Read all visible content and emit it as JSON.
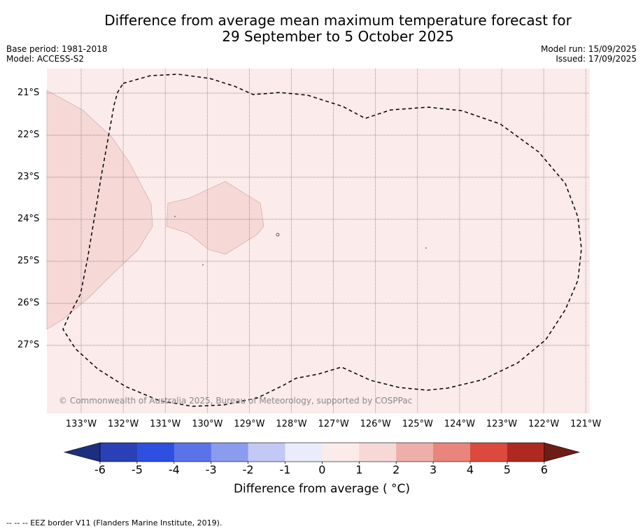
{
  "header": {
    "title_line1": "Difference from average mean maximum temperature forecast for",
    "title_line2": "29 September to 5 October 2025",
    "base_period": "Base period: 1981-2018",
    "model": "Model: ACCESS-S2",
    "model_run": "Model run: 15/09/2025",
    "issued": "Issued: 17/09/2025"
  },
  "map": {
    "lat_labels": [
      "21°S",
      "22°S",
      "23°S",
      "24°S",
      "25°S",
      "26°S",
      "27°S"
    ],
    "lon_labels": [
      "133°W",
      "132°W",
      "131°W",
      "130°W",
      "129°W",
      "128°W",
      "127°W",
      "126°W",
      "125°W",
      "124°W",
      "123°W",
      "122°W",
      "121°W"
    ],
    "copyright": "© Commonwealth of Australia 2025, Bureau of Meteorology, supported by COSPPac",
    "colors": {
      "background_anomaly": "#fbebea",
      "anomaly_1_to_2": "#f6d8d6",
      "eez_border": "#000000"
    }
  },
  "colorbar": {
    "ticks": [
      "-6",
      "-5",
      "-4",
      "-3",
      "-2",
      "-1",
      "0",
      "1",
      "2",
      "3",
      "4",
      "5",
      "6"
    ],
    "colors": [
      "#1c2e7e",
      "#2a40b6",
      "#2f4fe0",
      "#5a73e8",
      "#8b9cee",
      "#c3c9f5",
      "#eaecfb",
      "#fbebea",
      "#f6d8d6",
      "#eeafa9",
      "#e8857d",
      "#db4a3c",
      "#ad2a22",
      "#6e1d16"
    ],
    "label": "Difference from average ( °C)"
  },
  "footnote": "-- -- -- EEZ border V11 (Flanders Marine Institute, 2019)."
}
